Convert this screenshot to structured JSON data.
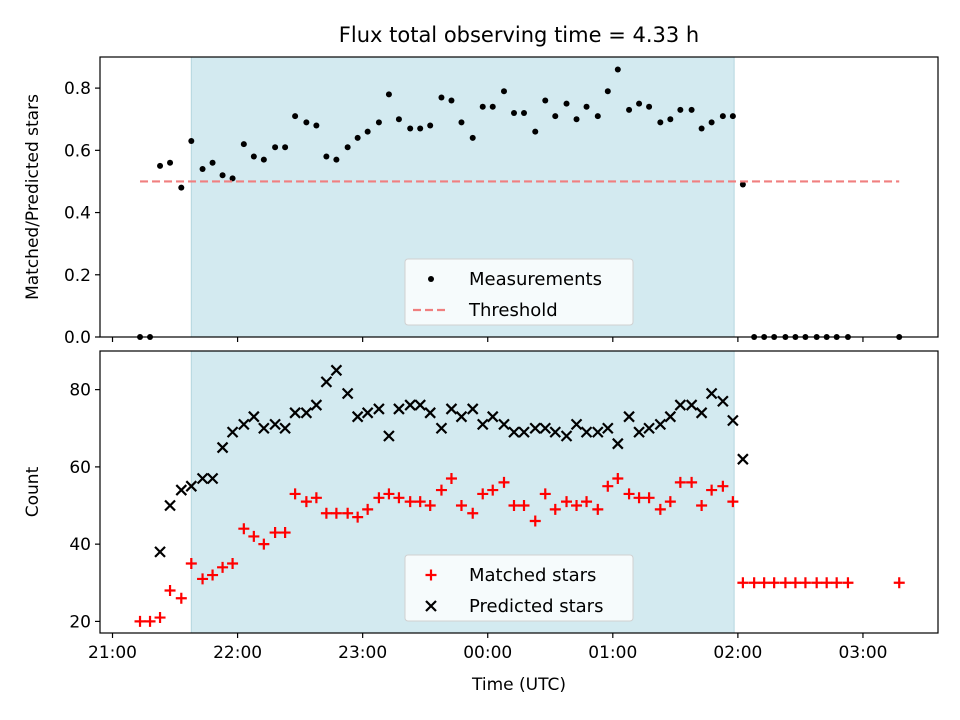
{
  "chart_data": {
    "type": "scatter",
    "title": "Flux total observing time = 4.33 h",
    "xlabel": "Time (UTC)",
    "x_ticks": [
      "21:00",
      "22:00",
      "23:00",
      "00:00",
      "01:00",
      "02:00",
      "03:00"
    ],
    "x_tick_hours": [
      0,
      1,
      2,
      3,
      4,
      5,
      6
    ],
    "x_range_hours": [
      -0.1,
      6.6
    ],
    "shaded_interval_hours": [
      0.63,
      4.97
    ],
    "shaded_color": "#d3eaf0",
    "panels": [
      {
        "ylabel": "Matched/Predicted stars",
        "ylim": [
          0,
          0.9
        ],
        "y_ticks": [
          "0.0",
          "0.2",
          "0.4",
          "0.6",
          "0.8"
        ],
        "y_tick_values": [
          0,
          0.2,
          0.4,
          0.6,
          0.8
        ],
        "legend": "lower-center",
        "series": [
          {
            "name": "Measurements",
            "marker": "dot",
            "color": "#000000",
            "x": [
              0.22,
              0.3,
              0.38,
              0.46,
              0.55,
              0.63,
              0.72,
              0.8,
              0.88,
              0.96,
              1.05,
              1.13,
              1.21,
              1.3,
              1.38,
              1.46,
              1.55,
              1.63,
              1.71,
              1.79,
              1.88,
              1.96,
              2.04,
              2.13,
              2.21,
              2.29,
              2.38,
              2.46,
              2.54,
              2.63,
              2.71,
              2.79,
              2.88,
              2.96,
              3.04,
              3.13,
              3.21,
              3.29,
              3.38,
              3.46,
              3.54,
              3.63,
              3.71,
              3.79,
              3.88,
              3.96,
              4.04,
              4.13,
              4.21,
              4.29,
              4.38,
              4.46,
              4.54,
              4.63,
              4.71,
              4.79,
              4.88,
              4.96,
              5.04,
              5.13,
              5.21,
              5.29,
              5.38,
              5.46,
              5.54,
              5.63,
              5.71,
              5.79,
              5.88,
              6.29
            ],
            "y": [
              0,
              0,
              0.55,
              0.56,
              0.48,
              0.63,
              0.54,
              0.56,
              0.52,
              0.51,
              0.62,
              0.58,
              0.57,
              0.61,
              0.61,
              0.71,
              0.69,
              0.68,
              0.58,
              0.57,
              0.61,
              0.64,
              0.66,
              0.69,
              0.78,
              0.7,
              0.67,
              0.67,
              0.68,
              0.77,
              0.76,
              0.69,
              0.64,
              0.74,
              0.74,
              0.79,
              0.72,
              0.72,
              0.66,
              0.76,
              0.71,
              0.75,
              0.7,
              0.74,
              0.71,
              0.79,
              0.86,
              0.73,
              0.75,
              0.74,
              0.69,
              0.7,
              0.73,
              0.73,
              0.67,
              0.69,
              0.71,
              0.71,
              0.49,
              0,
              0,
              0,
              0,
              0,
              0,
              0,
              0,
              0,
              0,
              0
            ]
          },
          {
            "name": "Threshold",
            "marker": "dashed-line",
            "color": "#f07f7f",
            "x": [
              0.22,
              6.29
            ],
            "y": [
              0.5,
              0.5
            ]
          }
        ]
      },
      {
        "ylabel": "Count",
        "ylim": [
          17,
          90
        ],
        "y_ticks": [
          "20",
          "40",
          "60",
          "80"
        ],
        "y_tick_values": [
          20,
          40,
          60,
          80
        ],
        "legend": "lower-center",
        "series": [
          {
            "name": "Matched stars",
            "marker": "plus",
            "color": "#ff0000",
            "x": [
              0.22,
              0.3,
              0.38,
              0.46,
              0.55,
              0.63,
              0.72,
              0.8,
              0.88,
              0.96,
              1.05,
              1.13,
              1.21,
              1.3,
              1.38,
              1.46,
              1.55,
              1.63,
              1.71,
              1.79,
              1.88,
              1.96,
              2.04,
              2.13,
              2.21,
              2.29,
              2.38,
              2.46,
              2.54,
              2.63,
              2.71,
              2.79,
              2.88,
              2.96,
              3.04,
              3.13,
              3.21,
              3.29,
              3.38,
              3.46,
              3.54,
              3.63,
              3.71,
              3.79,
              3.88,
              3.96,
              4.04,
              4.13,
              4.21,
              4.29,
              4.38,
              4.46,
              4.54,
              4.63,
              4.71,
              4.79,
              4.88,
              4.96,
              5.04,
              5.13,
              5.21,
              5.29,
              5.38,
              5.46,
              5.54,
              5.63,
              5.71,
              5.79,
              5.88,
              6.29
            ],
            "y": [
              20,
              20,
              21,
              28,
              26,
              35,
              31,
              32,
              34,
              35,
              44,
              42,
              40,
              43,
              43,
              53,
              51,
              52,
              48,
              48,
              48,
              47,
              49,
              52,
              53,
              52,
              51,
              51,
              50,
              54,
              57,
              50,
              48,
              53,
              54,
              56,
              50,
              50,
              46,
              53,
              49,
              51,
              50,
              51,
              49,
              55,
              57,
              53,
              52,
              52,
              49,
              51,
              56,
              56,
              50,
              54,
              55,
              51,
              30,
              30,
              30,
              30,
              30,
              30,
              30,
              30,
              30,
              30,
              30,
              30
            ]
          },
          {
            "name": "Predicted stars",
            "marker": "x",
            "color": "#000000",
            "x": [
              0.38,
              0.46,
              0.55,
              0.63,
              0.72,
              0.8,
              0.88,
              0.96,
              1.05,
              1.13,
              1.21,
              1.3,
              1.38,
              1.46,
              1.55,
              1.63,
              1.71,
              1.79,
              1.88,
              1.96,
              2.04,
              2.13,
              2.21,
              2.29,
              2.38,
              2.46,
              2.54,
              2.63,
              2.71,
              2.79,
              2.88,
              2.96,
              3.04,
              3.13,
              3.21,
              3.29,
              3.38,
              3.46,
              3.54,
              3.63,
              3.71,
              3.79,
              3.88,
              3.96,
              4.04,
              4.13,
              4.21,
              4.29,
              4.38,
              4.46,
              4.54,
              4.63,
              4.71,
              4.79,
              4.88,
              4.96,
              5.04
            ],
            "y": [
              38,
              50,
              54,
              55,
              57,
              57,
              65,
              69,
              71,
              73,
              70,
              71,
              70,
              74,
              74,
              76,
              82,
              85,
              79,
              73,
              74,
              75,
              68,
              75,
              76,
              76,
              74,
              70,
              75,
              73,
              75,
              71,
              73,
              71,
              69,
              69,
              70,
              70,
              69,
              68,
              71,
              69,
              69,
              70,
              66,
              73,
              69,
              70,
              71,
              73,
              76,
              76,
              74,
              79,
              77,
              72,
              62
            ]
          }
        ]
      }
    ]
  }
}
